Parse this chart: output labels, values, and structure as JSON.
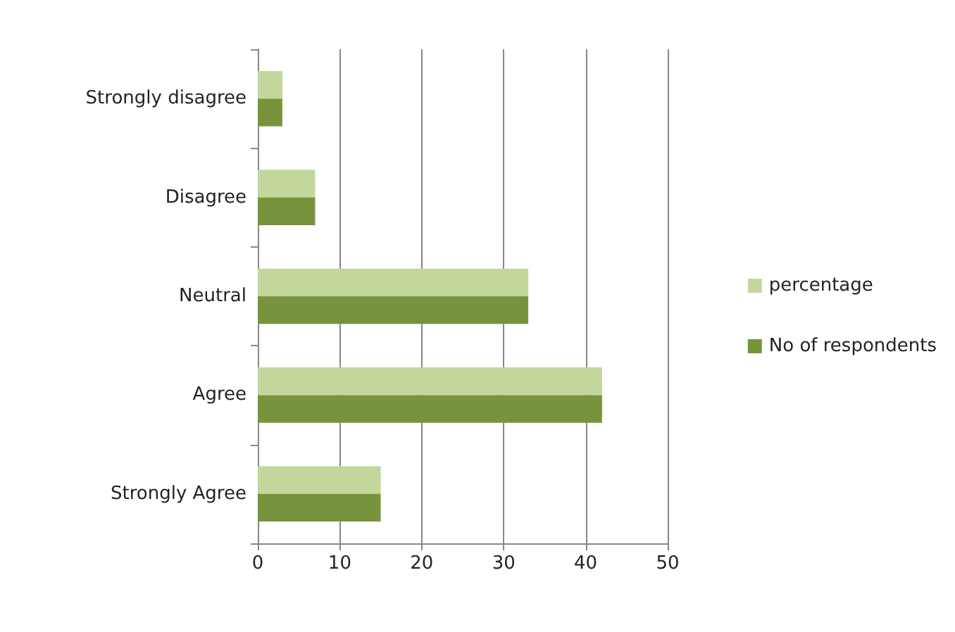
{
  "chart_data": {
    "type": "bar",
    "orientation": "horizontal",
    "categories": [
      "Strongly disagree",
      "Disagree",
      "Neutral",
      "Agree",
      "Strongly Agree"
    ],
    "series": [
      {
        "name": "percentage",
        "color": "#c3d69b",
        "values": [
          3,
          7,
          33,
          42,
          15
        ]
      },
      {
        "name": "No of respondents",
        "color": "#77933c",
        "values": [
          3,
          7,
          33,
          42,
          15
        ]
      }
    ],
    "xlim": [
      0,
      50
    ],
    "xticks": [
      0,
      10,
      20,
      30,
      40,
      50
    ],
    "grid": "x",
    "legend": "right"
  }
}
